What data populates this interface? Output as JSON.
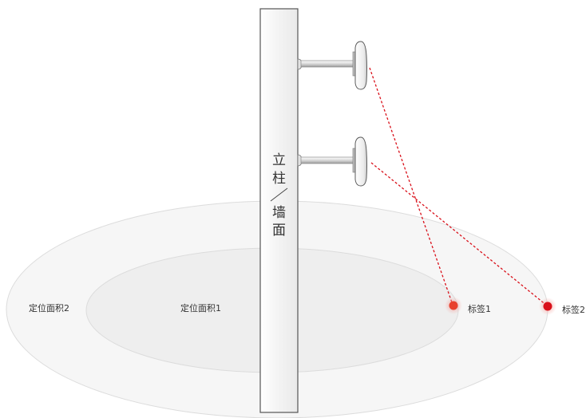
{
  "pillar": {
    "chars": [
      "立",
      "柱",
      "/",
      "墙",
      "面"
    ]
  },
  "zones": {
    "outer_label": "定位面积2",
    "inner_label": "定位面积1"
  },
  "tags": [
    {
      "label": "标签1",
      "color": "#e8412e"
    },
    {
      "label": "标签2",
      "color": "#d9101a"
    }
  ],
  "colors": {
    "signal_line": "#d9101a",
    "outer_zone_fill": "#f6f6f6",
    "inner_zone_fill": "#eeeeee",
    "zone_stroke": "#dcdcdc",
    "pillar_fill": "#f2f2f2",
    "pillar_stroke": "#555555"
  },
  "icons": [
    "locator-antenna-icon",
    "locator-antenna-icon"
  ]
}
